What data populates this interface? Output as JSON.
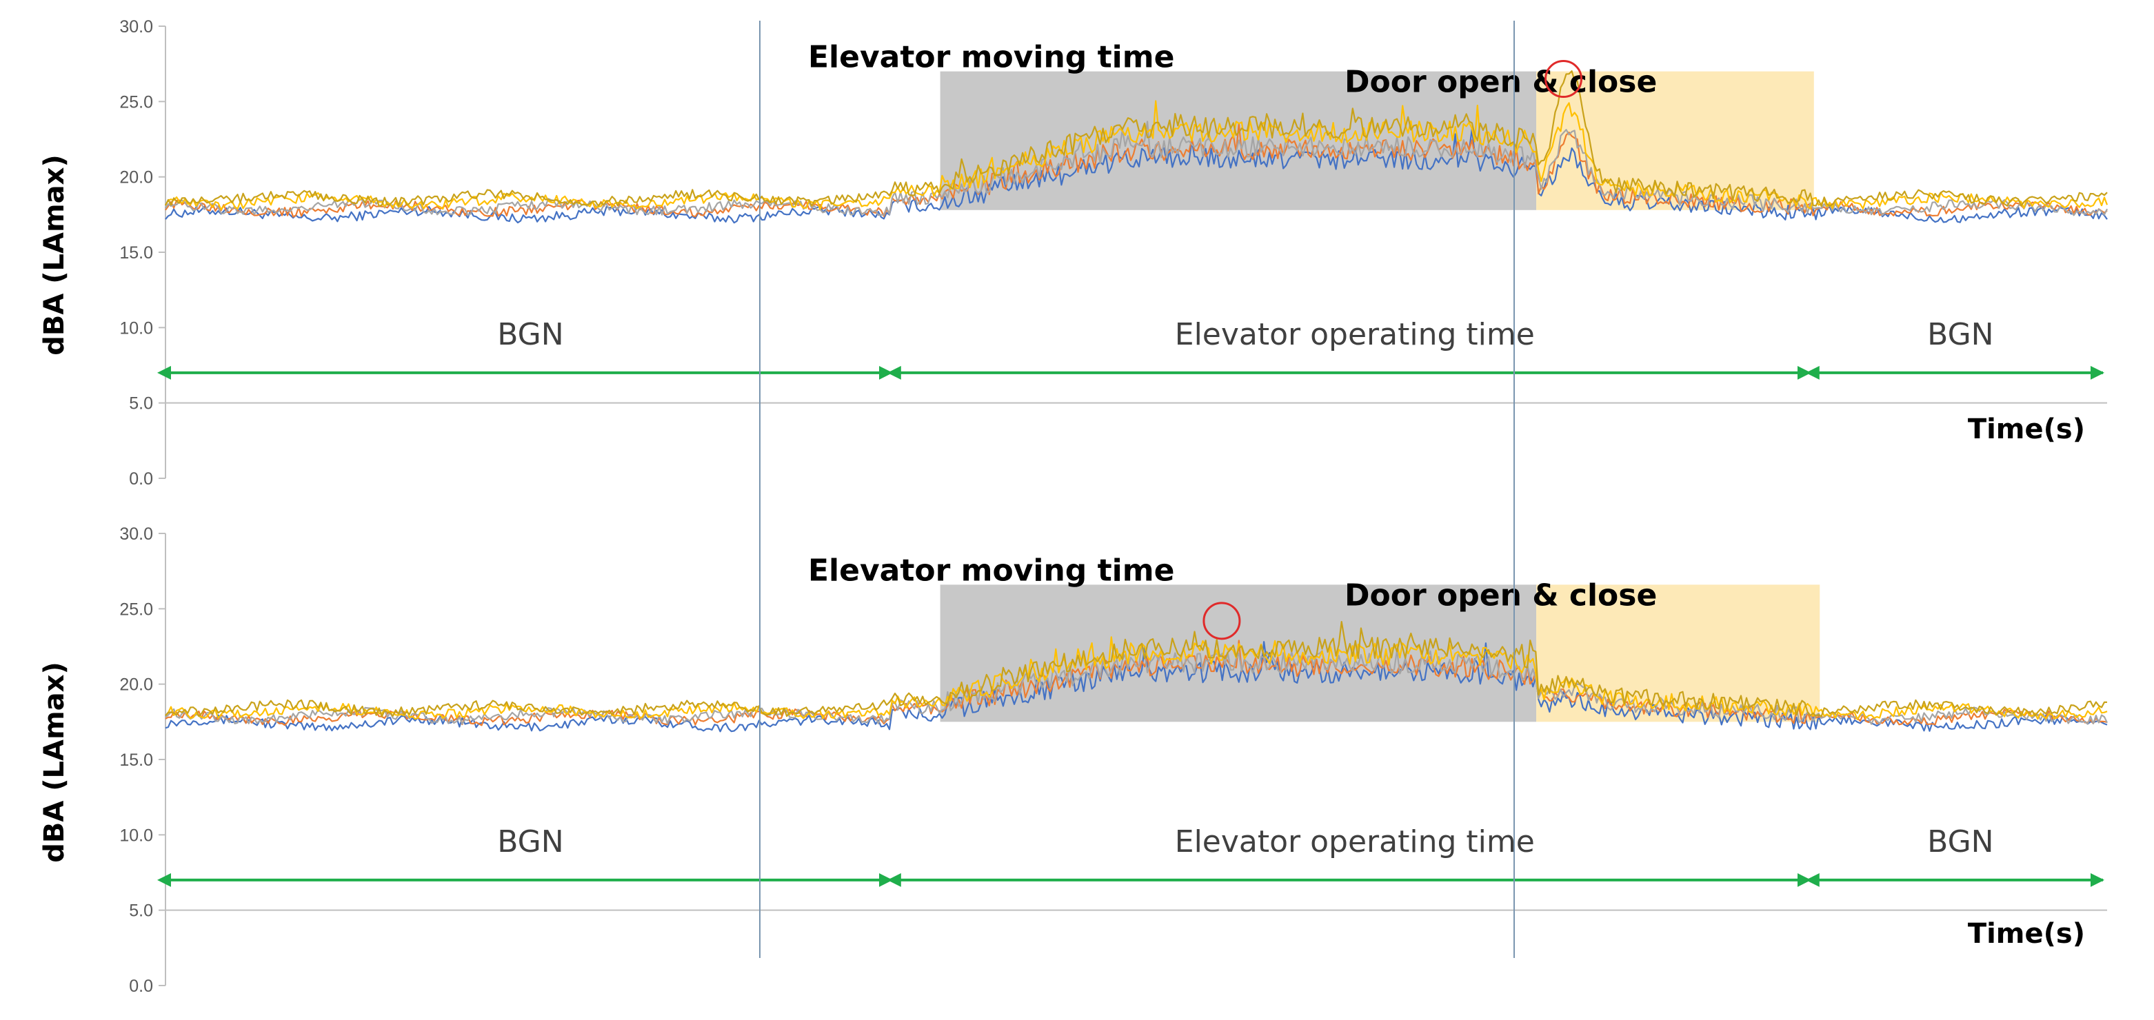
{
  "colors": {
    "axis": "#bfbfbf",
    "divider": "#7a96b0",
    "moving_region": "#c8c8c8",
    "door_region": "#fde9b7",
    "arrow": "#1fae4b",
    "highlight_circle": "#e02a2a",
    "series": [
      "#4472c4",
      "#ed7d31",
      "#a5a5a5",
      "#ffc000",
      "#c9a21a"
    ]
  },
  "chart_data": [
    {
      "type": "line",
      "ylabel": "dBA (LAmax)",
      "xlabel": "Time(s)",
      "ylim": [
        0,
        30
      ],
      "yticks": [
        "0.0",
        "5.0",
        "10.0",
        "15.0",
        "20.0",
        "25.0",
        "30.0"
      ],
      "grid": false,
      "x": [
        0,
        1
      ],
      "operating_range": [
        0.373,
        0.85
      ],
      "series": [
        {
          "baseline": 17.5,
          "moving_level": 21.2,
          "door_peak": 21.5
        },
        {
          "baseline": 17.9,
          "moving_level": 21.8,
          "door_peak": 22.5
        },
        {
          "baseline": 18.0,
          "moving_level": 22.0,
          "door_peak": 23.0
        },
        {
          "baseline": 18.4,
          "moving_level": 23.0,
          "door_peak": 24.5
        },
        {
          "baseline": 18.6,
          "moving_level": 23.3,
          "door_peak": 27.2
        }
      ],
      "regions": [
        {
          "label": "Elevator moving time",
          "x": [
            0.399,
            0.706
          ],
          "y": [
            17.8,
            27.0
          ]
        },
        {
          "label": "Door open & close",
          "x": [
            0.706,
            0.849
          ],
          "y": [
            17.8,
            27.0
          ]
        }
      ],
      "spans": [
        {
          "label": "BGN",
          "x": [
            0.0,
            0.376
          ],
          "y": 7.0
        },
        {
          "label": "Elevator operating time",
          "x": [
            0.376,
            0.849
          ],
          "y": 7.0
        },
        {
          "label": "BGN",
          "x": [
            0.849,
            1.0
          ],
          "y": 7.0
        }
      ],
      "highlight": {
        "x": 0.72,
        "y": 26.5,
        "note": "peak"
      }
    },
    {
      "type": "line",
      "ylabel": "dBA (LAmax)",
      "xlabel": "Time(s)",
      "ylim": [
        0,
        30
      ],
      "yticks": [
        "0.0",
        "5.0",
        "10.0",
        "15.0",
        "20.0",
        "25.0",
        "30.0"
      ],
      "grid": false,
      "x": [
        0,
        1
      ],
      "operating_range": [
        0.373,
        0.85
      ],
      "series": [
        {
          "baseline": 17.4,
          "moving_level": 20.8,
          "door_peak": 19.0
        },
        {
          "baseline": 17.8,
          "moving_level": 21.2,
          "door_peak": 19.3
        },
        {
          "baseline": 17.9,
          "moving_level": 21.4,
          "door_peak": 19.6
        },
        {
          "baseline": 18.2,
          "moving_level": 22.0,
          "door_peak": 20.0
        },
        {
          "baseline": 18.4,
          "moving_level": 22.4,
          "door_peak": 20.3
        }
      ],
      "regions": [
        {
          "label": "Elevator moving time",
          "x": [
            0.399,
            0.706
          ],
          "y": [
            17.5,
            26.6
          ]
        },
        {
          "label": "Door open & close",
          "x": [
            0.706,
            0.852
          ],
          "y": [
            17.5,
            26.6
          ]
        }
      ],
      "spans": [
        {
          "label": "BGN",
          "x": [
            0.0,
            0.376
          ],
          "y": 7.0
        },
        {
          "label": "Elevator operating time",
          "x": [
            0.376,
            0.849
          ],
          "y": 7.0
        },
        {
          "label": "BGN",
          "x": [
            0.849,
            1.0
          ],
          "y": 7.0
        }
      ],
      "highlight": {
        "x": 0.544,
        "y": 24.2,
        "note": "peak"
      }
    }
  ]
}
